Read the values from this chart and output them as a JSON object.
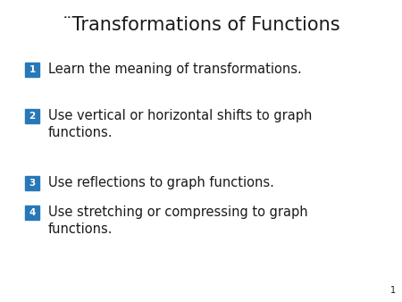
{
  "title": "¨Transformations of Functions",
  "title_fontsize": 15,
  "title_color": "#1a1a1a",
  "background_color": "#ffffff",
  "badge_color": "#2878b8",
  "badge_text_color": "#ffffff",
  "badge_fontsize": 7.5,
  "text_color": "#1a1a1a",
  "text_fontsize": 10.5,
  "page_number": "1",
  "page_number_fontsize": 7,
  "items": [
    {
      "badge": "1",
      "lines": [
        "Learn the meaning of transformations."
      ]
    },
    {
      "badge": "2",
      "lines": [
        "Use vertical or horizontal shifts to graph",
        "functions."
      ]
    },
    {
      "badge": "3",
      "lines": [
        "Use reflections to graph functions."
      ]
    },
    {
      "badge": "4",
      "lines": [
        "Use stretching or compressing to graph",
        "functions."
      ]
    }
  ]
}
